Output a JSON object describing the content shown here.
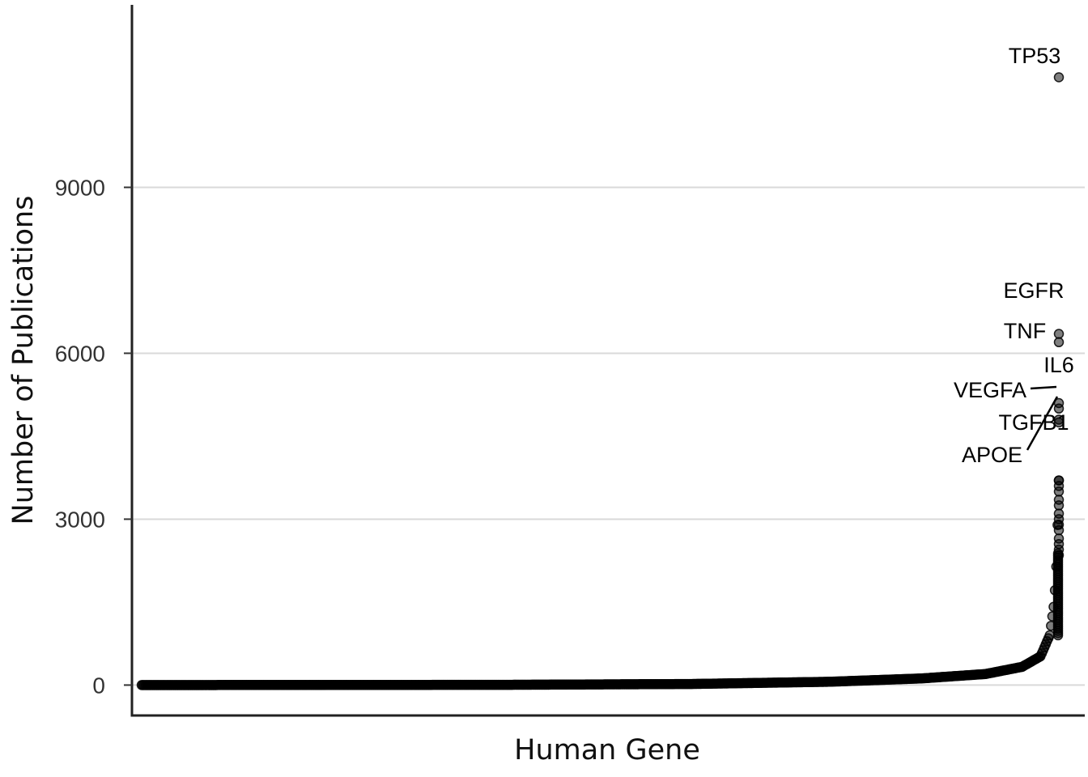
{
  "chart_data": {
    "type": "scatter",
    "title": "",
    "xlabel": "Human Gene",
    "ylabel": "Number of Publications",
    "ylim": [
      -550,
      12300
    ],
    "y_ticks": [
      0,
      3000,
      6000,
      9000
    ],
    "x_ticks": [],
    "grid": "horizontal major lines",
    "legend": "none",
    "point_color": "#000000",
    "point_alpha": 0.5,
    "n_genes_approx": 19000,
    "distribution_curve": {
      "description_points": [
        {
          "rank_fraction": 0.0,
          "publications": 0
        },
        {
          "rank_fraction": 0.4,
          "publications": 5
        },
        {
          "rank_fraction": 0.6,
          "publications": 20
        },
        {
          "rank_fraction": 0.75,
          "publications": 60
        },
        {
          "rank_fraction": 0.85,
          "publications": 120
        },
        {
          "rank_fraction": 0.92,
          "publications": 200
        },
        {
          "rank_fraction": 0.96,
          "publications": 330
        },
        {
          "rank_fraction": 0.98,
          "publications": 520
        },
        {
          "rank_fraction": 0.99,
          "publications": 900
        },
        {
          "rank_fraction": 0.995,
          "publications": 1500
        },
        {
          "rank_fraction": 0.998,
          "publications": 2400
        },
        {
          "rank_fraction": 0.9995,
          "publications": 3700
        }
      ]
    },
    "scattered_top_points": [
      3700,
      3600,
      3500,
      3350,
      3250,
      3100,
      3000,
      2900,
      2800,
      2650,
      2550,
      2450,
      2350
    ],
    "labeled_points": [
      {
        "label": "TP53",
        "publications": 10990
      },
      {
        "label": "EGFR",
        "publications": 6350
      },
      {
        "label": "TNF",
        "publications": 6200
      },
      {
        "label": "IL6",
        "publications": 5100
      },
      {
        "label": "VEGFA",
        "publications": 5000
      },
      {
        "label": "TGFB1",
        "publications": 4800
      },
      {
        "label": "APOE",
        "publications": 4750
      }
    ]
  }
}
